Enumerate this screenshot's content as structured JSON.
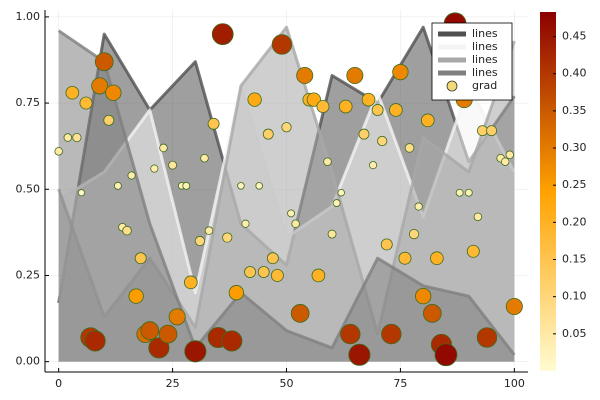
{
  "chart_data": {
    "type": "line",
    "xlim": [
      -3,
      103
    ],
    "ylim": [
      -0.03,
      1.02
    ],
    "xticks": [
      0,
      25,
      50,
      75,
      100
    ],
    "yticks": [
      {
        "value": 0,
        "label": "0.00"
      },
      {
        "value": 0.25,
        "label": "0.25"
      },
      {
        "value": 0.5,
        "label": "0.50"
      },
      {
        "value": 0.75,
        "label": "0.75"
      },
      {
        "value": 1,
        "label": "1.00"
      }
    ],
    "grid": true,
    "legend": "top-right",
    "fill_alpha": 0.55,
    "colormap": [
      "#fffbd0",
      "#ffa200",
      "#8b0000"
    ],
    "clim": [
      0,
      0.483
    ],
    "cticks": [
      0.05,
      {
        "value": 0.1,
        "label": "0.10"
      },
      0.15,
      {
        "value": 0.2,
        "label": "0.20"
      },
      0.25,
      {
        "value": 0.3,
        "label": "0.30"
      },
      0.35,
      {
        "value": 0.4,
        "label": "0.40"
      },
      0.45
    ],
    "series": [
      {
        "name": "lines",
        "type": "line",
        "color": "#505050",
        "x": [
          0,
          10,
          20,
          30,
          40,
          50,
          60,
          70,
          80,
          90,
          100
        ],
        "values": [
          0.17,
          0.95,
          0.73,
          0.87,
          0.4,
          0.28,
          0.83,
          0.75,
          0.97,
          0.58,
          0.77
        ]
      },
      {
        "name": "lines",
        "type": "line",
        "color": "#f4f4f4",
        "x": [
          0,
          10,
          20,
          30,
          40,
          50,
          60,
          70,
          80,
          90,
          100
        ],
        "values": [
          0.47,
          0.55,
          0.73,
          0.2,
          0.8,
          0.36,
          0.45,
          0.78,
          0.42,
          0.8,
          0.55
        ]
      },
      {
        "name": "lines",
        "type": "line",
        "color": "#a8a8a8",
        "x": [
          0,
          10,
          20,
          30,
          40,
          50,
          60,
          70,
          80,
          90,
          100
        ],
        "values": [
          0.5,
          0.13,
          0.3,
          0.1,
          0.8,
          0.97,
          0.55,
          0.08,
          0.65,
          0.55,
          0.93
        ]
      },
      {
        "name": "lines",
        "type": "line",
        "color": "#808080",
        "x": [
          0,
          10,
          20,
          30,
          40,
          50,
          60,
          70,
          80,
          90,
          100
        ],
        "values": [
          0.96,
          0.87,
          0.4,
          0.04,
          0.2,
          0.09,
          0.04,
          0.3,
          0.22,
          0.19,
          0.02
        ]
      },
      {
        "name": "grad",
        "type": "scatter",
        "color": "#f5d878",
        "x": [
          0,
          2,
          3,
          4,
          5,
          6,
          7,
          8,
          9,
          10,
          11,
          12,
          13,
          14,
          15,
          16,
          17,
          18,
          19,
          20,
          21,
          22,
          23,
          24,
          25,
          26,
          27,
          28,
          29,
          30,
          31,
          32,
          33,
          34,
          35,
          36,
          37,
          38,
          39,
          40,
          41,
          42,
          43,
          44,
          45,
          46,
          47,
          48,
          49,
          50,
          51,
          52,
          53,
          54,
          55,
          56,
          57,
          58,
          59,
          60,
          61,
          62,
          63,
          64,
          65,
          66,
          67,
          68,
          69,
          70,
          71,
          72,
          73,
          74,
          75,
          76,
          77,
          78,
          79,
          80,
          81,
          82,
          83,
          84,
          85,
          87,
          88,
          89,
          90,
          91,
          92,
          93,
          94,
          95,
          97,
          98,
          99,
          100
        ],
        "values": [
          0.61,
          0.65,
          0.78,
          0.65,
          0.49,
          0.75,
          0.07,
          0.06,
          0.8,
          0.87,
          0.7,
          0.78,
          0.51,
          0.39,
          0.38,
          0.54,
          0.19,
          0.3,
          0.08,
          0.09,
          0.56,
          0.04,
          0.62,
          0.08,
          0.57,
          0.13,
          0.51,
          0.51,
          0.23,
          0.03,
          0.35,
          0.59,
          0.38,
          0.69,
          0.07,
          0.95,
          0.36,
          0.06,
          0.2,
          0.51,
          0.4,
          0.26,
          0.76,
          0.51,
          0.26,
          0.66,
          0.3,
          0.25,
          0.92,
          0.68,
          0.43,
          0.4,
          0.14,
          0.83,
          0.76,
          0.76,
          0.25,
          0.74,
          0.58,
          0.37,
          0.46,
          0.49,
          0.74,
          0.08,
          0.83,
          0.02,
          0.66,
          0.76,
          0.57,
          0.73,
          0.64,
          0.34,
          0.08,
          0.73,
          0.84,
          0.3,
          0.62,
          0.37,
          0.45,
          0.19,
          0.7,
          0.14,
          0.3,
          0.05,
          0.02,
          0.98,
          0.49,
          0.76,
          0.49,
          0.32,
          0.42,
          0.67,
          0.07,
          0.67,
          0.59,
          0.58,
          0.6,
          0.16
        ],
        "color_values": [
          0.05,
          0.05,
          0.2,
          0.07,
          0.01,
          0.18,
          0.4,
          0.42,
          0.3,
          0.35,
          0.12,
          0.28,
          0.03,
          0.05,
          0.08,
          0.04,
          0.25,
          0.15,
          0.32,
          0.35,
          0.04,
          0.42,
          0.05,
          0.35,
          0.06,
          0.3,
          0.02,
          0.03,
          0.2,
          0.45,
          0.1,
          0.05,
          0.05,
          0.15,
          0.42,
          0.44,
          0.1,
          0.42,
          0.25,
          0.02,
          0.04,
          0.15,
          0.22,
          0.02,
          0.15,
          0.12,
          0.15,
          0.18,
          0.4,
          0.1,
          0.03,
          0.05,
          0.35,
          0.3,
          0.2,
          0.22,
          0.2,
          0.18,
          0.05,
          0.06,
          0.03,
          0.02,
          0.2,
          0.4,
          0.3,
          0.45,
          0.12,
          0.2,
          0.04,
          0.15,
          0.1,
          0.15,
          0.4,
          0.2,
          0.28,
          0.18,
          0.08,
          0.1,
          0.04,
          0.28,
          0.2,
          0.35,
          0.2,
          0.42,
          0.47,
          0.47,
          0.03,
          0.3,
          0.03,
          0.18,
          0.05,
          0.12,
          0.4,
          0.12,
          0.05,
          0.05,
          0.05,
          0.3
        ]
      }
    ]
  }
}
